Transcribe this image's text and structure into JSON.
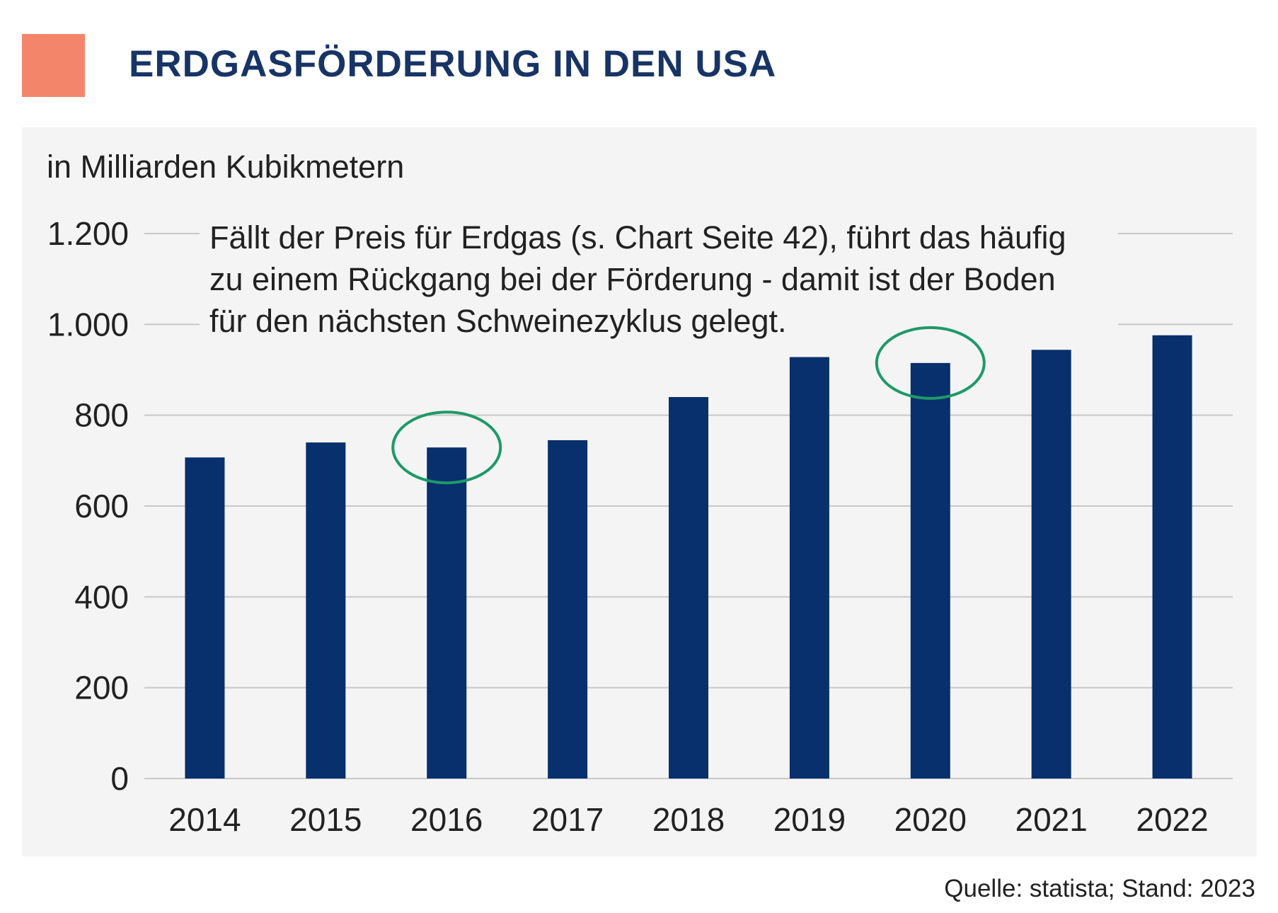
{
  "colors": {
    "accent": "#f2856a",
    "title": "#183466",
    "bar": "#07306c",
    "highlight": "#1e9968",
    "grid": "#c8c8c8",
    "text": "#222222"
  },
  "title": "ERDGASFÖRDERUNG IN DEN USA",
  "unit_label": "in Milliarden Kubikmetern",
  "annotation": {
    "lines": [
      "Fällt der Preis für Erdgas (s. Chart Seite 42), führt das häufig",
      "zu einem Rückgang bei der Förderung - damit ist der Boden",
      "für den nächsten Schweinezyklus gelegt."
    ]
  },
  "source": "Quelle: statista; Stand: 2023",
  "chart_data": {
    "type": "bar",
    "title": "ERDGASFÖRDERUNG IN DEN USA",
    "ylabel": "in Milliarden Kubikmetern",
    "xlabel": "",
    "categories": [
      "2014",
      "2015",
      "2016",
      "2017",
      "2018",
      "2019",
      "2020",
      "2021",
      "2022"
    ],
    "values": [
      707,
      740,
      729,
      745,
      840,
      928,
      915,
      944,
      976
    ],
    "highlighted": [
      "2016",
      "2020"
    ],
    "ylim": [
      0,
      1200
    ],
    "yticks": [
      0,
      200,
      400,
      600,
      800,
      1000,
      1200
    ],
    "ytick_labels": [
      "0",
      "200",
      "400",
      "600",
      "800",
      "1.000",
      "1.200"
    ],
    "grid": true,
    "legend": "none"
  }
}
